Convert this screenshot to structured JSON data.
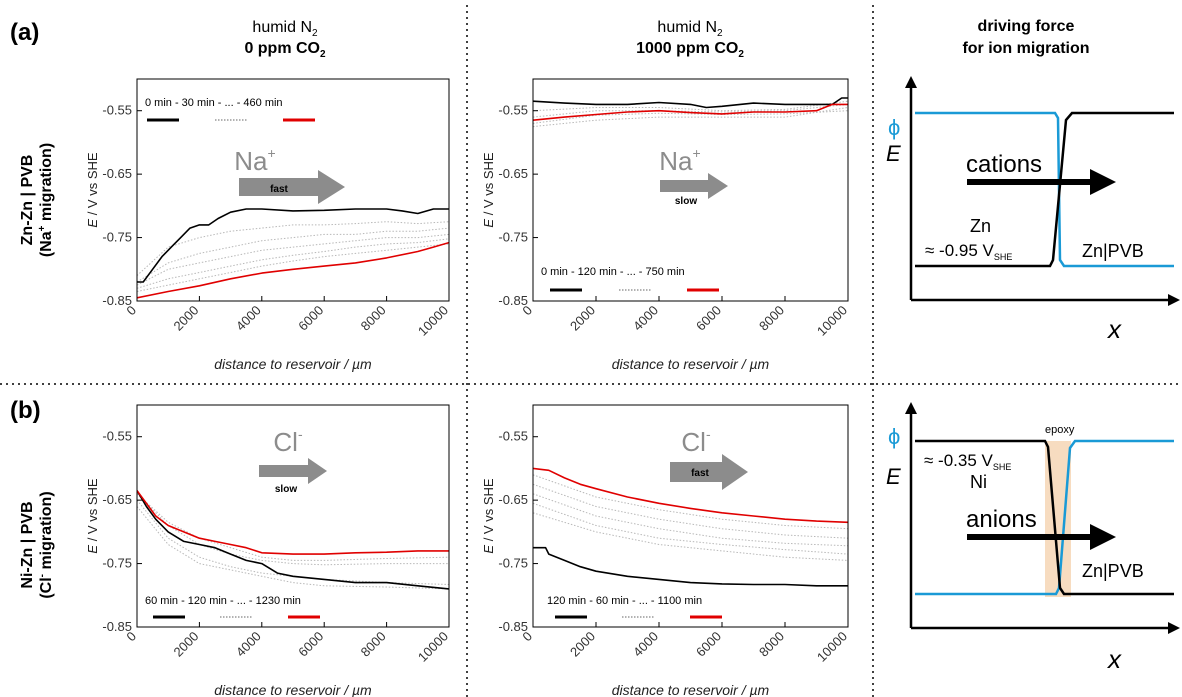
{
  "panels": {
    "a": "(a)",
    "b": "(b)"
  },
  "columns": {
    "c1": {
      "line1": "humid N",
      "line1_sub": "2",
      "line2": "0 ppm CO",
      "line2_sub": "2"
    },
    "c2": {
      "line1": "humid N",
      "line1_sub": "2",
      "line2": "1000 ppm CO",
      "line2_sub": "2"
    },
    "c3": {
      "line1": "driving force",
      "line2": "for ion migration"
    }
  },
  "rows": {
    "a": {
      "line1": "Zn-Zn | PVB",
      "line2_pre": "(Na",
      "line2_sup": "+",
      "line2_post": " migration)"
    },
    "b": {
      "line1": "Ni-Zn | PVB",
      "line2_pre": "(Cl",
      "line2_sup": "-",
      "line2_post": " migration)"
    }
  },
  "axis_labels": {
    "x": "distance to reservoir / µm",
    "y_italic": "E",
    "y_rest": " / V vs SHE"
  },
  "arrows": {
    "p1": {
      "ion": "Na",
      "sup": "+",
      "speed": "fast"
    },
    "p2": {
      "ion": "Na",
      "sup": "+",
      "speed": "slow"
    },
    "p3": {
      "ion": "Cl",
      "sup": "-",
      "speed": "slow"
    },
    "p4": {
      "ion": "Cl",
      "sup": "-",
      "speed": "fast"
    }
  },
  "legends": {
    "p1": "0 min - 30 min - ... - 460 min",
    "p2": "0 min - 120 min - ... - 750 min",
    "p3": "60 min - 120 min - ... - 1230 min",
    "p4": "120 min - 60 min - ... - 1100 min"
  },
  "schematic_top": {
    "phi": "ϕ",
    "E": "E",
    "x": "x",
    "ion_label": "cations",
    "metal": "Zn",
    "potential_pre": "≈ -0.95 V",
    "potential_sub": "SHE",
    "coating": "Zn|PVB"
  },
  "schematic_bottom": {
    "phi": "ϕ",
    "E": "E",
    "x": "x",
    "ion_label": "anions",
    "metal": "Ni",
    "potential_pre": "≈ -0.35 V",
    "potential_sub": "SHE",
    "coating": "Zn|PVB",
    "epoxy": "epoxy"
  },
  "colors": {
    "first": "#000000",
    "intermediate": "#b8b8b8",
    "last": "#e00000",
    "phi_line": "#1a9ad6",
    "arrow": "#8c8c8c",
    "epoxy": "#f7dcc0"
  },
  "chart_data": [
    {
      "id": "p1",
      "type": "line",
      "xlabel": "distance to reservoir / µm",
      "ylabel": "E / V vs SHE",
      "xlim": [
        0,
        10000
      ],
      "ylim": [
        -0.85,
        -0.5
      ],
      "xticks": [
        0,
        2000,
        4000,
        6000,
        8000,
        10000
      ],
      "yticks": [
        -0.55,
        -0.65,
        -0.75,
        -0.85
      ],
      "series": [
        {
          "name": "0 min",
          "role": "first",
          "x": [
            0,
            200,
            500,
            800,
            1100,
            1400,
            1700,
            2000,
            2300,
            2600,
            3000,
            3500,
            4000,
            5000,
            6000,
            7000,
            8000,
            8500,
            9000,
            9500,
            10000
          ],
          "y": [
            -0.82,
            -0.82,
            -0.8,
            -0.78,
            -0.765,
            -0.75,
            -0.735,
            -0.73,
            -0.73,
            -0.72,
            -0.71,
            -0.705,
            -0.705,
            -0.708,
            -0.707,
            -0.705,
            -0.705,
            -0.708,
            -0.712,
            -0.705,
            -0.705
          ]
        },
        {
          "name": "460 min",
          "role": "last",
          "x": [
            0,
            1000,
            2000,
            3000,
            4000,
            5000,
            6000,
            7000,
            8000,
            9000,
            9500,
            10000
          ],
          "y": [
            -0.845,
            -0.835,
            -0.826,
            -0.815,
            -0.806,
            -0.8,
            -0.795,
            -0.79,
            -0.782,
            -0.772,
            -0.765,
            -0.758
          ]
        },
        {
          "role": "intermediate",
          "x": [
            0,
            1000,
            2000,
            3000,
            4000,
            5000,
            6000,
            7000,
            8000,
            9000,
            10000
          ],
          "y": [
            -0.81,
            -0.765,
            -0.75,
            -0.74,
            -0.735,
            -0.73,
            -0.73,
            -0.728,
            -0.725,
            -0.728,
            -0.725
          ]
        },
        {
          "role": "intermediate",
          "x": [
            0,
            1000,
            2000,
            3000,
            4000,
            5000,
            6000,
            7000,
            8000,
            9000,
            10000
          ],
          "y": [
            -0.82,
            -0.79,
            -0.775,
            -0.765,
            -0.755,
            -0.75,
            -0.745,
            -0.745,
            -0.74,
            -0.74,
            -0.735
          ]
        },
        {
          "role": "intermediate",
          "x": [
            0,
            1000,
            2000,
            3000,
            4000,
            5000,
            6000,
            7000,
            8000,
            9000,
            10000
          ],
          "y": [
            -0.825,
            -0.8,
            -0.79,
            -0.78,
            -0.77,
            -0.765,
            -0.76,
            -0.755,
            -0.75,
            -0.75,
            -0.745
          ]
        },
        {
          "role": "intermediate",
          "x": [
            0,
            1000,
            2000,
            3000,
            4000,
            5000,
            6000,
            7000,
            8000,
            9000,
            10000
          ],
          "y": [
            -0.83,
            -0.815,
            -0.805,
            -0.795,
            -0.785,
            -0.778,
            -0.772,
            -0.765,
            -0.76,
            -0.758,
            -0.752
          ]
        },
        {
          "role": "intermediate",
          "x": [
            0,
            1000,
            2000,
            3000,
            4000,
            5000,
            6000,
            7000,
            8000,
            9000,
            10000
          ],
          "y": [
            -0.835,
            -0.825,
            -0.815,
            -0.805,
            -0.795,
            -0.787,
            -0.78,
            -0.775,
            -0.77,
            -0.765,
            -0.76
          ]
        }
      ]
    },
    {
      "id": "p2",
      "type": "line",
      "xlabel": "distance to reservoir / µm",
      "ylabel": "E / V vs SHE",
      "xlim": [
        0,
        10000
      ],
      "ylim": [
        -0.85,
        -0.5
      ],
      "xticks": [
        0,
        2000,
        4000,
        6000,
        8000,
        10000
      ],
      "yticks": [
        -0.55,
        -0.65,
        -0.75,
        -0.85
      ],
      "series": [
        {
          "name": "0 min",
          "role": "first",
          "x": [
            0,
            1000,
            2000,
            3000,
            4000,
            5000,
            5500,
            6000,
            7000,
            8000,
            9000,
            9500,
            9800,
            10000
          ],
          "y": [
            -0.535,
            -0.538,
            -0.54,
            -0.54,
            -0.537,
            -0.54,
            -0.545,
            -0.543,
            -0.538,
            -0.54,
            -0.54,
            -0.54,
            -0.53,
            -0.53
          ]
        },
        {
          "name": "750 min",
          "role": "last",
          "x": [
            0,
            1000,
            2000,
            3000,
            4000,
            5000,
            6000,
            7000,
            8000,
            9000,
            9500,
            10000
          ],
          "y": [
            -0.565,
            -0.56,
            -0.556,
            -0.552,
            -0.55,
            -0.553,
            -0.555,
            -0.552,
            -0.552,
            -0.55,
            -0.54,
            -0.54
          ]
        },
        {
          "role": "intermediate",
          "x": [
            0,
            2000,
            4000,
            6000,
            8000,
            10000
          ],
          "y": [
            -0.55,
            -0.545,
            -0.545,
            -0.55,
            -0.548,
            -0.535
          ]
        },
        {
          "role": "intermediate",
          "x": [
            0,
            2000,
            4000,
            6000,
            8000,
            10000
          ],
          "y": [
            -0.56,
            -0.55,
            -0.55,
            -0.552,
            -0.55,
            -0.54
          ]
        },
        {
          "role": "intermediate",
          "x": [
            0,
            2000,
            4000,
            6000,
            8000,
            10000
          ],
          "y": [
            -0.575,
            -0.565,
            -0.56,
            -0.56,
            -0.56,
            -0.545
          ]
        },
        {
          "role": "intermediate",
          "x": [
            0,
            2000,
            4000,
            6000,
            8000,
            10000
          ],
          "y": [
            -0.57,
            -0.557,
            -0.554,
            -0.556,
            -0.555,
            -0.55
          ]
        }
      ]
    },
    {
      "id": "p3",
      "type": "line",
      "xlabel": "distance to reservoir / µm",
      "ylabel": "E / V vs SHE",
      "xlim": [
        0,
        10000
      ],
      "ylim": [
        -0.85,
        -0.5
      ],
      "xticks": [
        0,
        2000,
        4000,
        6000,
        8000,
        10000
      ],
      "yticks": [
        -0.55,
        -0.65,
        -0.75,
        -0.85
      ],
      "series": [
        {
          "name": "60 min",
          "role": "first",
          "x": [
            0,
            300,
            600,
            1000,
            1500,
            2000,
            2500,
            3000,
            3500,
            4000,
            4500,
            5000,
            6000,
            7000,
            8000,
            9000,
            10000
          ],
          "y": [
            -0.635,
            -0.66,
            -0.68,
            -0.7,
            -0.715,
            -0.72,
            -0.725,
            -0.735,
            -0.745,
            -0.75,
            -0.765,
            -0.77,
            -0.775,
            -0.78,
            -0.78,
            -0.785,
            -0.79
          ]
        },
        {
          "name": "1230 min",
          "role": "last",
          "x": [
            0,
            300,
            600,
            1000,
            1500,
            2000,
            2500,
            3000,
            3500,
            4000,
            5000,
            6000,
            7000,
            8000,
            9000,
            10000
          ],
          "y": [
            -0.635,
            -0.655,
            -0.675,
            -0.69,
            -0.7,
            -0.71,
            -0.715,
            -0.72,
            -0.725,
            -0.733,
            -0.735,
            -0.735,
            -0.733,
            -0.732,
            -0.73,
            -0.73
          ]
        },
        {
          "role": "intermediate",
          "x": [
            0,
            1000,
            2000,
            3000,
            4000,
            5000,
            6000,
            8000,
            10000
          ],
          "y": [
            -0.64,
            -0.69,
            -0.72,
            -0.735,
            -0.745,
            -0.75,
            -0.752,
            -0.75,
            -0.75
          ]
        },
        {
          "role": "intermediate",
          "x": [
            0,
            1000,
            2000,
            3000,
            4000,
            5000,
            6000,
            8000,
            10000
          ],
          "y": [
            -0.65,
            -0.71,
            -0.74,
            -0.755,
            -0.765,
            -0.77,
            -0.775,
            -0.78,
            -0.783
          ]
        },
        {
          "role": "intermediate",
          "x": [
            0,
            1000,
            2000,
            3000,
            4000,
            5000,
            6000,
            8000,
            10000
          ],
          "y": [
            -0.66,
            -0.72,
            -0.75,
            -0.76,
            -0.77,
            -0.78,
            -0.785,
            -0.787,
            -0.79
          ]
        },
        {
          "role": "intermediate",
          "x": [
            0,
            1000,
            2000,
            3000,
            4000,
            5000,
            6000,
            8000,
            10000
          ],
          "y": [
            -0.64,
            -0.685,
            -0.71,
            -0.725,
            -0.74,
            -0.745,
            -0.745,
            -0.742,
            -0.74
          ]
        }
      ]
    },
    {
      "id": "p4",
      "type": "line",
      "xlabel": "distance to reservoir / µm",
      "ylabel": "E / V vs SHE",
      "xlim": [
        0,
        10000
      ],
      "ylim": [
        -0.85,
        -0.5
      ],
      "xticks": [
        0,
        2000,
        4000,
        6000,
        8000,
        10000
      ],
      "yticks": [
        -0.55,
        -0.65,
        -0.75,
        -0.85
      ],
      "series": [
        {
          "name": "120 min",
          "role": "first",
          "x": [
            0,
            400,
            500,
            1000,
            1500,
            2000,
            3000,
            4000,
            5000,
            6000,
            7000,
            8000,
            9000,
            10000
          ],
          "y": [
            -0.725,
            -0.725,
            -0.735,
            -0.745,
            -0.755,
            -0.762,
            -0.77,
            -0.775,
            -0.78,
            -0.782,
            -0.783,
            -0.783,
            -0.785,
            -0.785
          ]
        },
        {
          "name": "1100 min",
          "role": "last",
          "x": [
            0,
            500,
            1000,
            1500,
            2000,
            3000,
            4000,
            5000,
            6000,
            7000,
            8000,
            9000,
            10000
          ],
          "y": [
            -0.6,
            -0.603,
            -0.615,
            -0.625,
            -0.632,
            -0.645,
            -0.655,
            -0.663,
            -0.67,
            -0.675,
            -0.68,
            -0.683,
            -0.685
          ]
        },
        {
          "role": "intermediate",
          "x": [
            0,
            2000,
            4000,
            6000,
            8000,
            10000
          ],
          "y": [
            -0.61,
            -0.645,
            -0.665,
            -0.68,
            -0.69,
            -0.695
          ]
        },
        {
          "role": "intermediate",
          "x": [
            0,
            2000,
            4000,
            6000,
            8000,
            10000
          ],
          "y": [
            -0.625,
            -0.66,
            -0.68,
            -0.695,
            -0.705,
            -0.71
          ]
        },
        {
          "role": "intermediate",
          "x": [
            0,
            2000,
            4000,
            6000,
            8000,
            10000
          ],
          "y": [
            -0.64,
            -0.675,
            -0.695,
            -0.71,
            -0.718,
            -0.722
          ]
        },
        {
          "role": "intermediate",
          "x": [
            0,
            2000,
            4000,
            6000,
            8000,
            10000
          ],
          "y": [
            -0.655,
            -0.69,
            -0.71,
            -0.72,
            -0.728,
            -0.735
          ]
        },
        {
          "role": "intermediate",
          "x": [
            0,
            2000,
            4000,
            6000,
            8000,
            10000
          ],
          "y": [
            -0.67,
            -0.7,
            -0.72,
            -0.73,
            -0.74,
            -0.745
          ]
        }
      ]
    }
  ]
}
